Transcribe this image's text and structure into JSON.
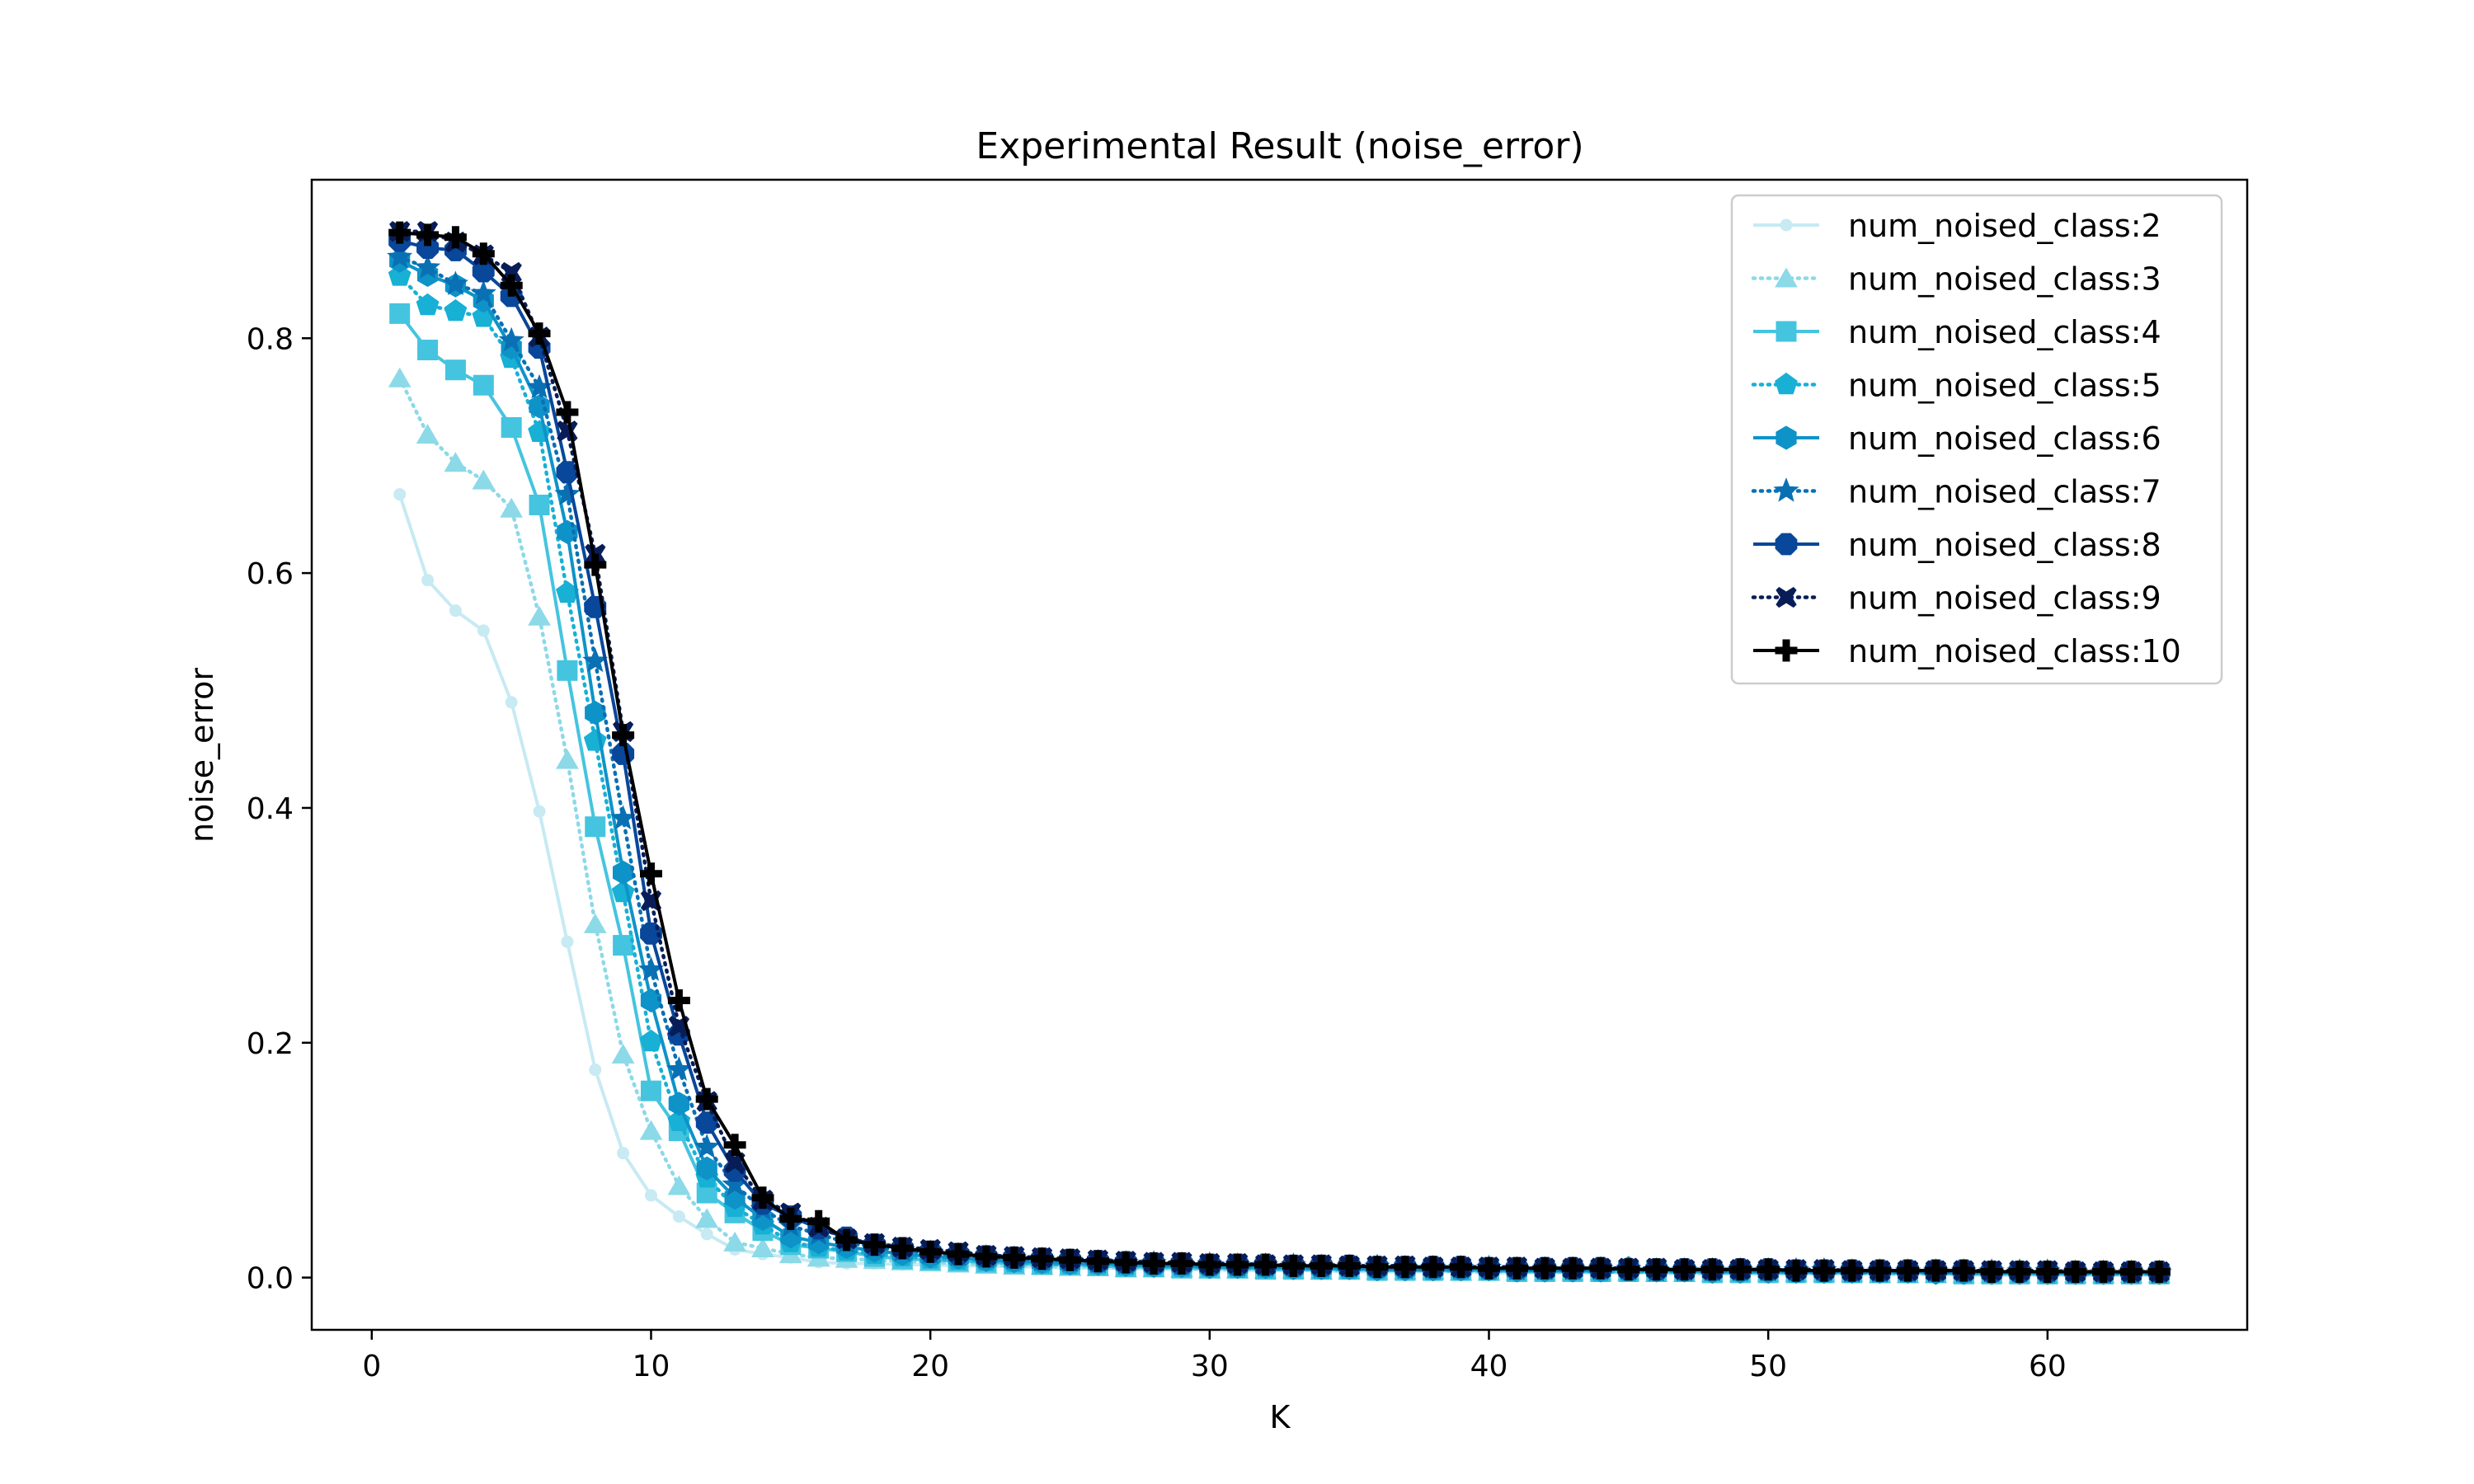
{
  "chart_data": {
    "type": "line",
    "title": "Experimental Result (noise_error)",
    "xlabel": "K",
    "ylabel": "noise_error",
    "xlim": [
      -2.15,
      67.15
    ],
    "ylim": [
      -0.0445,
      0.935
    ],
    "xticks": [
      0,
      10,
      20,
      30,
      40,
      50,
      60
    ],
    "yticks": [
      0.0,
      0.2,
      0.4,
      0.6,
      0.8
    ],
    "xtick_labels": [
      "0",
      "10",
      "20",
      "30",
      "40",
      "50",
      "60"
    ],
    "ytick_labels": [
      "0.0",
      "0.2",
      "0.4",
      "0.6",
      "0.8"
    ],
    "grid": false,
    "legend_position": "top-right",
    "x": [
      1,
      2,
      3,
      4,
      5,
      6,
      7,
      8,
      9,
      10,
      11,
      12,
      13,
      14,
      15,
      16,
      17,
      18,
      19,
      20,
      21,
      22,
      23,
      24,
      25,
      26,
      27,
      28,
      29,
      30,
      31,
      32,
      33,
      34,
      35,
      36,
      37,
      38,
      39,
      40,
      41,
      42,
      43,
      44,
      45,
      46,
      47,
      48,
      49,
      50,
      51,
      52,
      53,
      54,
      55,
      56,
      57,
      58,
      59,
      60,
      61,
      62,
      63,
      64
    ],
    "series": [
      {
        "name": "num_noised_class:2",
        "color": "#c7eaf3",
        "dash": "solid",
        "marker": "point",
        "values": [
          0.667,
          0.594,
          0.568,
          0.551,
          0.49,
          0.397,
          0.286,
          0.177,
          0.106,
          0.07,
          0.052,
          0.037,
          0.024,
          0.02,
          0.017,
          0.013,
          0.012,
          0.012,
          0.011,
          0.011,
          0.01,
          0.01,
          0.009,
          0.009,
          0.008,
          0.008,
          0.008,
          0.007,
          0.007,
          0.007,
          0.006,
          0.006,
          0.006,
          0.006,
          0.005,
          0.005,
          0.005,
          0.005,
          0.005,
          0.004,
          0.004,
          0.004,
          0.004,
          0.004,
          0.004,
          0.004,
          0.003,
          0.003,
          0.003,
          0.003,
          0.003,
          0.003,
          0.003,
          0.003,
          0.003,
          0.003,
          0.002,
          0.002,
          0.002,
          0.002,
          0.002,
          0.002,
          0.002,
          0.002
        ]
      },
      {
        "name": "num_noised_class:3",
        "color": "#8cd9e8",
        "dash": "dotted",
        "marker": "triangle",
        "values": [
          0.766,
          0.718,
          0.694,
          0.679,
          0.655,
          0.563,
          0.441,
          0.301,
          0.19,
          0.125,
          0.078,
          0.05,
          0.03,
          0.025,
          0.02,
          0.017,
          0.016,
          0.015,
          0.014,
          0.013,
          0.012,
          0.011,
          0.01,
          0.01,
          0.009,
          0.009,
          0.008,
          0.008,
          0.008,
          0.007,
          0.007,
          0.007,
          0.007,
          0.006,
          0.006,
          0.006,
          0.006,
          0.006,
          0.005,
          0.005,
          0.005,
          0.005,
          0.005,
          0.005,
          0.005,
          0.004,
          0.004,
          0.004,
          0.004,
          0.004,
          0.004,
          0.004,
          0.004,
          0.003,
          0.003,
          0.003,
          0.003,
          0.003,
          0.003,
          0.003,
          0.003,
          0.003,
          0.003,
          0.003
        ]
      },
      {
        "name": "num_noised_class:4",
        "color": "#45c4df",
        "dash": "solid",
        "marker": "square",
        "values": [
          0.821,
          0.79,
          0.773,
          0.76,
          0.724,
          0.658,
          0.517,
          0.384,
          0.283,
          0.159,
          0.125,
          0.072,
          0.055,
          0.04,
          0.028,
          0.025,
          0.022,
          0.018,
          0.016,
          0.015,
          0.014,
          0.013,
          0.012,
          0.011,
          0.011,
          0.01,
          0.009,
          0.009,
          0.008,
          0.008,
          0.008,
          0.007,
          0.007,
          0.007,
          0.007,
          0.006,
          0.006,
          0.006,
          0.006,
          0.006,
          0.005,
          0.005,
          0.005,
          0.005,
          0.005,
          0.005,
          0.005,
          0.004,
          0.004,
          0.004,
          0.004,
          0.004,
          0.004,
          0.004,
          0.004,
          0.004,
          0.003,
          0.003,
          0.003,
          0.003,
          0.003,
          0.003,
          0.003,
          0.003
        ]
      },
      {
        "name": "num_noised_class:5",
        "color": "#18b0d5",
        "dash": "dotted",
        "marker": "pentagon",
        "values": [
          0.853,
          0.828,
          0.823,
          0.818,
          0.783,
          0.72,
          0.583,
          0.457,
          0.328,
          0.201,
          0.133,
          0.085,
          0.06,
          0.045,
          0.03,
          0.026,
          0.023,
          0.02,
          0.018,
          0.016,
          0.015,
          0.014,
          0.013,
          0.012,
          0.011,
          0.011,
          0.01,
          0.01,
          0.009,
          0.009,
          0.008,
          0.008,
          0.008,
          0.007,
          0.007,
          0.007,
          0.007,
          0.006,
          0.006,
          0.006,
          0.006,
          0.006,
          0.006,
          0.005,
          0.005,
          0.005,
          0.005,
          0.005,
          0.005,
          0.005,
          0.004,
          0.004,
          0.004,
          0.004,
          0.004,
          0.004,
          0.004,
          0.004,
          0.004,
          0.003,
          0.003,
          0.003,
          0.003,
          0.003
        ]
      },
      {
        "name": "num_noised_class:6",
        "color": "#0e93c8",
        "dash": "solid",
        "marker": "hexagon",
        "values": [
          0.866,
          0.854,
          0.845,
          0.832,
          0.792,
          0.742,
          0.635,
          0.481,
          0.345,
          0.236,
          0.148,
          0.093,
          0.068,
          0.05,
          0.035,
          0.03,
          0.026,
          0.023,
          0.02,
          0.018,
          0.017,
          0.015,
          0.014,
          0.013,
          0.012,
          0.012,
          0.011,
          0.01,
          0.01,
          0.009,
          0.009,
          0.009,
          0.008,
          0.008,
          0.008,
          0.007,
          0.007,
          0.007,
          0.007,
          0.007,
          0.006,
          0.006,
          0.006,
          0.006,
          0.008,
          0.006,
          0.006,
          0.005,
          0.005,
          0.005,
          0.005,
          0.005,
          0.005,
          0.005,
          0.005,
          0.004,
          0.004,
          0.004,
          0.004,
          0.004,
          0.004,
          0.004,
          0.004,
          0.004
        ]
      },
      {
        "name": "num_noised_class:7",
        "color": "#0a70b4",
        "dash": "dotted",
        "marker": "star",
        "values": [
          0.869,
          0.86,
          0.846,
          0.838,
          0.798,
          0.758,
          0.667,
          0.525,
          0.391,
          0.262,
          0.177,
          0.111,
          0.079,
          0.058,
          0.044,
          0.037,
          0.03,
          0.026,
          0.023,
          0.021,
          0.019,
          0.017,
          0.016,
          0.015,
          0.014,
          0.013,
          0.012,
          0.012,
          0.011,
          0.011,
          0.01,
          0.01,
          0.01,
          0.009,
          0.009,
          0.009,
          0.008,
          0.008,
          0.008,
          0.008,
          0.007,
          0.007,
          0.007,
          0.007,
          0.007,
          0.006,
          0.006,
          0.006,
          0.006,
          0.006,
          0.006,
          0.006,
          0.005,
          0.005,
          0.005,
          0.005,
          0.005,
          0.005,
          0.005,
          0.005,
          0.004,
          0.004,
          0.004,
          0.004
        ]
      },
      {
        "name": "num_noised_class:8",
        "color": "#08479a",
        "dash": "solid",
        "marker": "octagon",
        "values": [
          0.883,
          0.877,
          0.875,
          0.857,
          0.836,
          0.792,
          0.686,
          0.571,
          0.446,
          0.293,
          0.207,
          0.132,
          0.091,
          0.063,
          0.052,
          0.042,
          0.034,
          0.028,
          0.025,
          0.022,
          0.02,
          0.018,
          0.017,
          0.016,
          0.015,
          0.014,
          0.013,
          0.012,
          0.012,
          0.011,
          0.011,
          0.011,
          0.01,
          0.01,
          0.01,
          0.009,
          0.009,
          0.009,
          0.009,
          0.008,
          0.008,
          0.008,
          0.008,
          0.008,
          0.007,
          0.007,
          0.007,
          0.007,
          0.007,
          0.007,
          0.006,
          0.006,
          0.006,
          0.006,
          0.006,
          0.006,
          0.006,
          0.005,
          0.005,
          0.005,
          0.005,
          0.005,
          0.005,
          0.005
        ]
      },
      {
        "name": "num_noised_class:9",
        "color": "#081d58",
        "dash": "dotted",
        "marker": "x",
        "values": [
          0.891,
          0.891,
          0.882,
          0.871,
          0.856,
          0.801,
          0.721,
          0.616,
          0.465,
          0.321,
          0.214,
          0.15,
          0.098,
          0.066,
          0.055,
          0.043,
          0.033,
          0.029,
          0.026,
          0.024,
          0.022,
          0.019,
          0.018,
          0.017,
          0.016,
          0.015,
          0.014,
          0.013,
          0.013,
          0.012,
          0.012,
          0.011,
          0.011,
          0.011,
          0.01,
          0.01,
          0.01,
          0.009,
          0.009,
          0.009,
          0.009,
          0.008,
          0.008,
          0.008,
          0.008,
          0.008,
          0.007,
          0.007,
          0.007,
          0.007,
          0.007,
          0.007,
          0.006,
          0.006,
          0.006,
          0.006,
          0.006,
          0.006,
          0.006,
          0.006,
          0.005,
          0.005,
          0.005,
          0.005
        ]
      },
      {
        "name": "num_noised_class:10",
        "color": "#000000",
        "dash": "solid",
        "marker": "plus",
        "values": [
          0.89,
          0.888,
          0.886,
          0.872,
          0.845,
          0.804,
          0.737,
          0.607,
          0.462,
          0.344,
          0.236,
          0.152,
          0.113,
          0.068,
          0.05,
          0.048,
          0.032,
          0.028,
          0.025,
          0.022,
          0.02,
          0.018,
          0.017,
          0.016,
          0.015,
          0.014,
          0.013,
          0.012,
          0.012,
          0.011,
          0.011,
          0.011,
          0.01,
          0.01,
          0.01,
          0.009,
          0.009,
          0.009,
          0.009,
          0.008,
          0.008,
          0.008,
          0.008,
          0.008,
          0.007,
          0.007,
          0.007,
          0.007,
          0.007,
          0.007,
          0.006,
          0.006,
          0.006,
          0.006,
          0.006,
          0.006,
          0.006,
          0.005,
          0.005,
          0.005,
          0.005,
          0.005,
          0.005,
          0.005
        ]
      }
    ]
  }
}
